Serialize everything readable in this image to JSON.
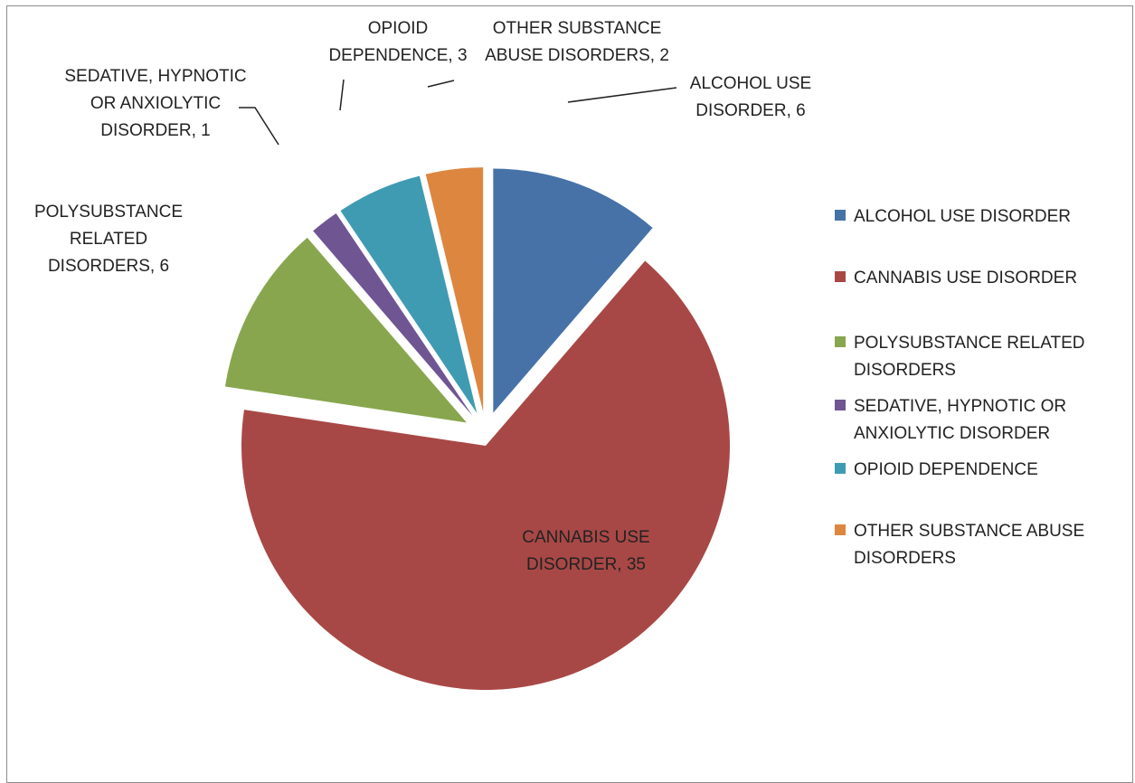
{
  "chart_data": {
    "type": "pie",
    "title": "",
    "categories": [
      "ALCOHOL USE DISORDER",
      "CANNABIS USE DISORDER",
      "POLYSUBSTANCE RELATED DISORDERS",
      "SEDATIVE, HYPNOTIC OR ANXIOLYTIC DISORDER",
      "OPIOID DEPENDENCE",
      "OTHER SUBSTANCE ABUSE DISORDERS"
    ],
    "values": [
      6,
      35,
      6,
      1,
      3,
      2
    ],
    "colors": [
      "#4672a8",
      "#a84846",
      "#88a64e",
      "#6f5592",
      "#3f9bb2",
      "#dd8640"
    ],
    "exploded": true,
    "legend_position": "right",
    "data_labels": [
      [
        "ALCOHOL USE",
        "DISORDER, 6"
      ],
      [
        "CANNABIS USE",
        "DISORDER, 35"
      ],
      [
        "POLYSUBSTANCE",
        "RELATED",
        "DISORDERS, 6"
      ],
      [
        "SEDATIVE, HYPNOTIC",
        "OR ANXIOLYTIC",
        "DISORDER, 1"
      ],
      [
        "OPIOID",
        "DEPENDENCE, 3"
      ],
      [
        "OTHER SUBSTANCE",
        "ABUSE DISORDERS, 2"
      ]
    ],
    "legend_entries": [
      [
        "ALCOHOL USE DISORDER"
      ],
      [
        "CANNABIS USE DISORDER"
      ],
      [
        "POLYSUBSTANCE RELATED",
        "DISORDERS"
      ],
      [
        "SEDATIVE, HYPNOTIC OR",
        "ANXIOLYTIC DISORDER"
      ],
      [
        "OPIOID DEPENDENCE"
      ],
      [
        "OTHER SUBSTANCE ABUSE",
        "DISORDERS"
      ]
    ]
  }
}
